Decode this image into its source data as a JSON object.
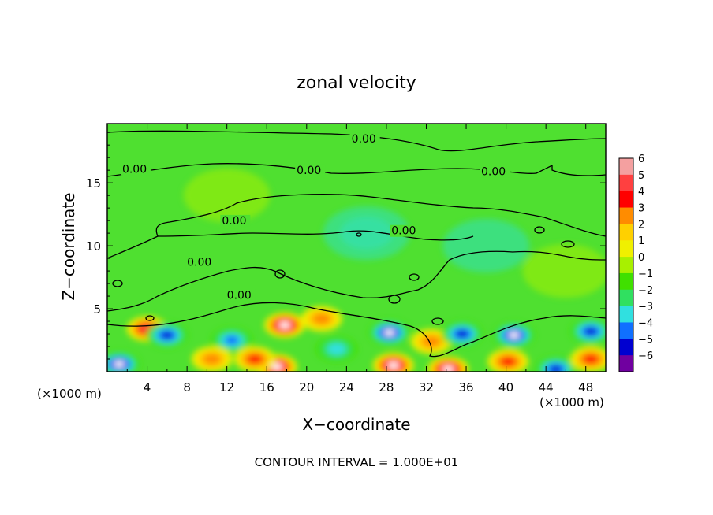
{
  "chart_data": {
    "type": "heatmap",
    "title": "zonal velocity",
    "xlabel": "X−coordinate",
    "ylabel": "Z−coordinate",
    "x_unit_left": "(×1000 m)",
    "x_unit_right": "(×1000 m)",
    "xlim": [
      0,
      50
    ],
    "ylim": [
      0,
      19.7
    ],
    "x_ticks": [
      4,
      8,
      12,
      16,
      20,
      24,
      28,
      32,
      36,
      40,
      44,
      48
    ],
    "y_ticks": [
      5,
      10,
      15
    ],
    "colorbar": {
      "levels": [
        6,
        5,
        4,
        3,
        2,
        1,
        0,
        -1,
        -2,
        -3,
        -4,
        -5,
        -6
      ],
      "level_labels": [
        "6",
        "5",
        "4",
        "3",
        "2",
        "1",
        "0",
        "−1",
        "−2",
        "−3",
        "−4",
        "−5",
        "−6"
      ],
      "colors": [
        "#f4a0a0",
        "#ff4040",
        "#ff0000",
        "#ff8c00",
        "#ffd000",
        "#f0f000",
        "#a8f000",
        "#40e000",
        "#30e060",
        "#30e0e0",
        "#1070ff",
        "#0000d0",
        "#7000a0"
      ]
    },
    "contour_label": "0.00",
    "contour_labels": [
      {
        "text": "0.00",
        "x": 24.5,
        "z": 18.2
      },
      {
        "text": "0.00",
        "x": 1.5,
        "z": 15.8
      },
      {
        "text": "0.00",
        "x": 19.0,
        "z": 15.7
      },
      {
        "text": "0.00",
        "x": 37.5,
        "z": 15.6
      },
      {
        "text": "0.00",
        "x": 11.5,
        "z": 11.7
      },
      {
        "text": "0.00",
        "x": 28.5,
        "z": 10.9
      },
      {
        "text": "0.00",
        "x": 8.0,
        "z": 8.4
      },
      {
        "text": "0.00",
        "x": 12.0,
        "z": 5.8
      }
    ],
    "footer": "CONTOUR INTERVAL = 1.000E+01",
    "field_features": [
      {
        "x": 4.0,
        "z": 3.4,
        "value": 5.2
      },
      {
        "x": 1.2,
        "z": 0.6,
        "value": -5.5
      },
      {
        "x": 6.0,
        "z": 2.9,
        "value": -4.8
      },
      {
        "x": 12.5,
        "z": 2.5,
        "value": -4.0
      },
      {
        "x": 17.8,
        "z": 3.7,
        "value": 6.0
      },
      {
        "x": 17.0,
        "z": 0.4,
        "value": 5.8
      },
      {
        "x": 14.8,
        "z": 1.0,
        "value": 4.2
      },
      {
        "x": 23.0,
        "z": 1.8,
        "value": -2.8
      },
      {
        "x": 28.3,
        "z": 3.1,
        "value": -6.0
      },
      {
        "x": 28.7,
        "z": 0.5,
        "value": 5.5
      },
      {
        "x": 32.5,
        "z": 2.4,
        "value": 2.6
      },
      {
        "x": 34.2,
        "z": 0.2,
        "value": 6.0
      },
      {
        "x": 35.6,
        "z": 3.0,
        "value": -5.0
      },
      {
        "x": 40.8,
        "z": 2.9,
        "value": -6.0
      },
      {
        "x": 40.2,
        "z": 0.8,
        "value": 3.8
      },
      {
        "x": 45.0,
        "z": 0.2,
        "value": -5.0
      },
      {
        "x": 48.5,
        "z": 3.2,
        "value": -4.5
      },
      {
        "x": 48.5,
        "z": 1.0,
        "value": 3.5
      },
      {
        "x": 10.5,
        "z": 1.0,
        "value": 3.0
      },
      {
        "x": 21.5,
        "z": 4.2,
        "value": 2.5
      },
      {
        "x": 26.0,
        "z": 11.0,
        "value": -1.5
      },
      {
        "x": 38.0,
        "z": 10.0,
        "value": -1.2
      },
      {
        "x": 12.0,
        "z": 14.0,
        "value": 0.6
      },
      {
        "x": 46.0,
        "z": 8.0,
        "value": 0.7
      }
    ]
  }
}
